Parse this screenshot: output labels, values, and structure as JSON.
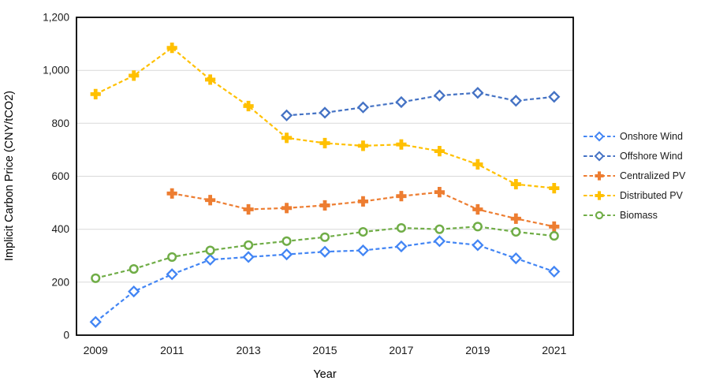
{
  "chart_data": {
    "type": "line",
    "title": "",
    "xlabel": "Year",
    "ylabel": "Implicit Carbon Price (CNY/tCO2)",
    "x_ticks": [
      2009,
      2011,
      2013,
      2015,
      2017,
      2019,
      2021
    ],
    "x_range": [
      2009,
      2021
    ],
    "ylim": [
      0,
      1200
    ],
    "y_ticks": [
      0,
      200,
      400,
      600,
      800,
      1000,
      1200
    ],
    "y_tick_labels": [
      "0",
      "200",
      "400",
      "600",
      "800",
      "1,000",
      "1,200"
    ],
    "grid": "horizontal-only",
    "legend_position": "right-middle",
    "line_style": "dashed",
    "series": [
      {
        "name": "Onshore Wind",
        "color": "#4285F4",
        "marker": "diamond",
        "x": [
          2009,
          2010,
          2011,
          2012,
          2013,
          2014,
          2015,
          2016,
          2017,
          2018,
          2019,
          2020,
          2021
        ],
        "values": [
          50,
          165,
          230,
          285,
          295,
          305,
          315,
          320,
          335,
          355,
          340,
          290,
          240
        ]
      },
      {
        "name": "Offshore Wind",
        "color": "#4472C4",
        "marker": "diamond",
        "x": [
          2014,
          2015,
          2016,
          2017,
          2018,
          2019,
          2020,
          2021
        ],
        "values": [
          830,
          840,
          860,
          880,
          905,
          915,
          885,
          900
        ]
      },
      {
        "name": "Centralized PV",
        "color": "#ED7D31",
        "marker": "plus",
        "x": [
          2011,
          2012,
          2013,
          2014,
          2015,
          2016,
          2017,
          2018,
          2019,
          2020,
          2021
        ],
        "values": [
          535,
          510,
          475,
          480,
          490,
          505,
          525,
          540,
          475,
          440,
          410
        ]
      },
      {
        "name": "Distributed PV",
        "color": "#FFC000",
        "marker": "plus",
        "x": [
          2009,
          2010,
          2011,
          2012,
          2013,
          2014,
          2015,
          2016,
          2017,
          2018,
          2019,
          2020,
          2021
        ],
        "values": [
          910,
          980,
          1085,
          965,
          865,
          745,
          725,
          715,
          720,
          695,
          645,
          570,
          555
        ]
      },
      {
        "name": "Biomass",
        "color": "#70AD47",
        "marker": "circle",
        "x": [
          2009,
          2010,
          2011,
          2012,
          2013,
          2014,
          2015,
          2016,
          2017,
          2018,
          2019,
          2020,
          2021
        ],
        "values": [
          215,
          250,
          295,
          320,
          340,
          355,
          370,
          390,
          405,
          400,
          410,
          390,
          375
        ]
      }
    ],
    "colors": {
      "gridline": "#D9D9D9",
      "plot_border": "#000000",
      "background": "#FFFFFF"
    }
  }
}
